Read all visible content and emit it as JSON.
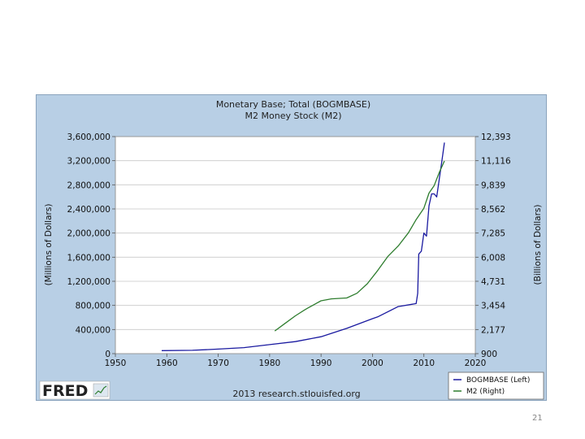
{
  "page_number": "21",
  "logo": {
    "text": "FRED"
  },
  "chart_data": {
    "type": "line",
    "title": [
      "Monetary Base; Total (BOGMBASE)",
      "M2 Money Stock (M2)"
    ],
    "ylabel_left": "(Millions of Dollars)",
    "ylabel_right": "(Billions of Dollars)",
    "xlim": [
      1950,
      2020
    ],
    "ylim_left": [
      0,
      3600000
    ],
    "ylim_right": [
      900,
      12393
    ],
    "x_ticks": [
      "1950",
      "1960",
      "1970",
      "1980",
      "1990",
      "2000",
      "2010",
      "2020"
    ],
    "y_ticks_left": [
      "0",
      "400,000",
      "800,000",
      "1,200,000",
      "1,600,000",
      "2,000,000",
      "2,400,000",
      "2,800,000",
      "3,200,000",
      "3,600,000"
    ],
    "y_ticks_right": [
      "900",
      "2,177",
      "3,454",
      "4,731",
      "6,008",
      "7,285",
      "8,562",
      "9,839",
      "11,116",
      "12,393"
    ],
    "grid": true,
    "legend_position": "bottom-right",
    "source": "2013 research.stlouisfed.org",
    "colors": {
      "bogmbase": "#1a1aa0",
      "m2": "#2e7d2e",
      "panel": "#b8cfe5",
      "plot": "#ffffff"
    },
    "series": [
      {
        "name": "BOGMBASE (Left)",
        "axis": "left",
        "x": [
          1959,
          1965,
          1970,
          1975,
          1980,
          1985,
          1990,
          1995,
          2000,
          2001,
          2005,
          2008.5,
          2008.8,
          2009,
          2009.5,
          2010,
          2010.5,
          2011,
          2011.5,
          2012,
          2012.5,
          2013,
          2013.5,
          2014
        ],
        "y": [
          50000,
          55000,
          75000,
          100000,
          150000,
          200000,
          280000,
          420000,
          580000,
          610000,
          780000,
          830000,
          1000000,
          1650000,
          1700000,
          2000000,
          1950000,
          2450000,
          2650000,
          2650000,
          2600000,
          2900000,
          3200000,
          3500000
        ]
      },
      {
        "name": "M2 (Right)",
        "axis": "right",
        "x": [
          1981,
          1983,
          1985,
          1987,
          1989,
          1990,
          1992,
          1995,
          1997,
          1999,
          2001,
          2003,
          2005,
          2007,
          2008.5,
          2010,
          2011,
          2012,
          2013,
          2014
        ],
        "y": [
          2100,
          2500,
          2900,
          3250,
          3550,
          3700,
          3800,
          3850,
          4100,
          4600,
          5300,
          6050,
          6600,
          7300,
          8000,
          8600,
          9400,
          9800,
          10500,
          11100
        ]
      }
    ]
  }
}
